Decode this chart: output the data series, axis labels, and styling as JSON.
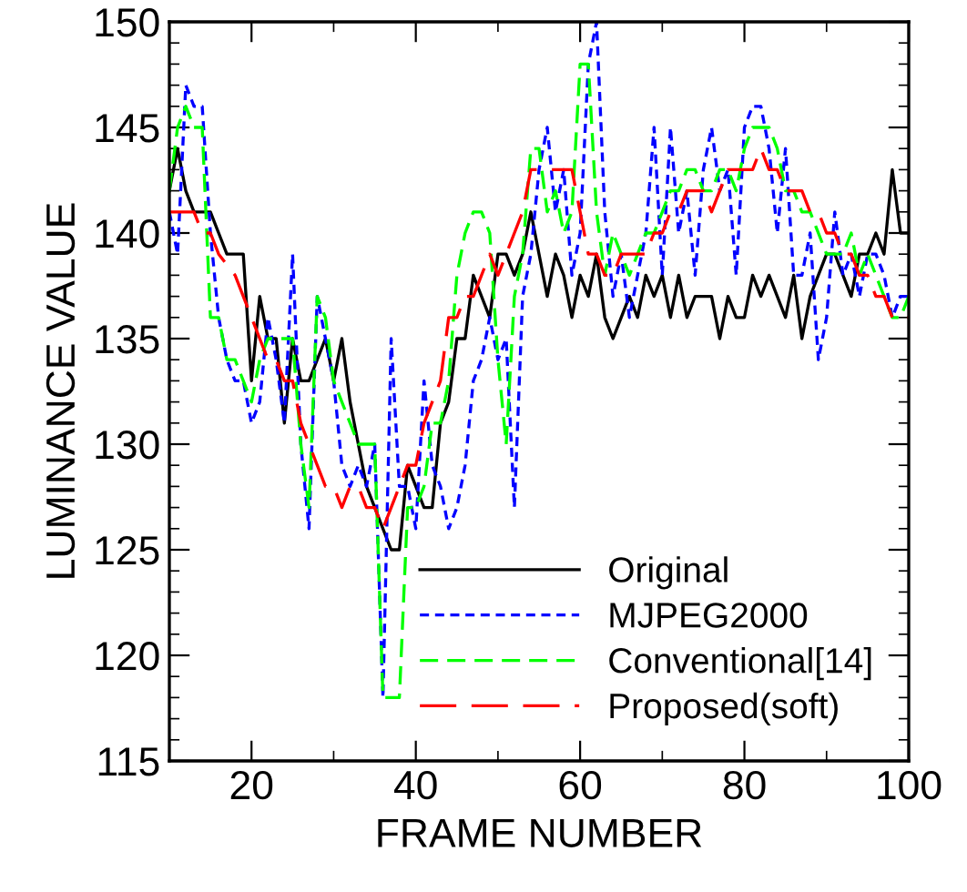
{
  "chart_data": {
    "type": "line",
    "xlabel": "FRAME NUMBER",
    "ylabel": "LUMINANCE VALUE",
    "xlim": [
      10,
      100
    ],
    "ylim": [
      115,
      150
    ],
    "xticks": [
      20,
      {
        "value": 30,
        "label": null
      },
      40,
      {
        "value": 50,
        "label": null
      },
      60,
      {
        "value": 70,
        "label": null
      },
      80,
      {
        "value": 90,
        "label": null
      },
      100
    ],
    "yticks": [
      115,
      {
        "value": 116,
        "label": null
      },
      {
        "value": 117,
        "label": null
      },
      {
        "value": 118,
        "label": null
      },
      {
        "value": 119,
        "label": null
      },
      120,
      {
        "value": 121,
        "label": null
      },
      {
        "value": 122,
        "label": null
      },
      {
        "value": 123,
        "label": null
      },
      {
        "value": 124,
        "label": null
      },
      125,
      {
        "value": 126,
        "label": null
      },
      {
        "value": 127,
        "label": null
      },
      {
        "value": 128,
        "label": null
      },
      {
        "value": 129,
        "label": null
      },
      130,
      {
        "value": 131,
        "label": null
      },
      {
        "value": 132,
        "label": null
      },
      {
        "value": 133,
        "label": null
      },
      {
        "value": 134,
        "label": null
      },
      135,
      {
        "value": 136,
        "label": null
      },
      {
        "value": 137,
        "label": null
      },
      {
        "value": 138,
        "label": null
      },
      {
        "value": 139,
        "label": null
      },
      140,
      {
        "value": 141,
        "label": null
      },
      {
        "value": 142,
        "label": null
      },
      {
        "value": 143,
        "label": null
      },
      {
        "value": 144,
        "label": null
      },
      145,
      {
        "value": 146,
        "label": null
      },
      {
        "value": 147,
        "label": null
      },
      {
        "value": 148,
        "label": null
      },
      {
        "value": 149,
        "label": null
      },
      150
    ],
    "grid": false,
    "legend": "bottom right",
    "marker": "none",
    "series": [
      {
        "name": "Original",
        "color": "#000000",
        "line_style": "solid",
        "x": [
          10,
          11,
          12,
          13,
          15,
          16,
          17,
          19,
          20,
          21,
          22,
          23,
          24,
          25,
          26,
          27,
          28,
          29,
          30,
          31,
          32,
          33,
          34,
          35,
          36,
          37,
          38,
          39,
          40,
          41,
          42,
          43,
          44,
          45,
          46,
          47,
          48,
          49,
          50,
          51,
          52,
          53,
          54,
          55,
          56,
          57,
          58,
          59,
          60,
          61,
          62,
          63,
          64,
          65,
          66,
          67,
          68,
          69,
          70,
          71,
          72,
          73,
          74,
          76,
          77,
          78,
          79,
          80,
          81,
          82,
          83,
          84,
          85,
          86,
          87,
          88,
          89,
          90,
          91,
          92,
          93,
          94,
          95,
          96,
          97,
          98,
          99,
          100
        ],
        "values": [
          142,
          144,
          142,
          141,
          141,
          140,
          139,
          139,
          133,
          137,
          135,
          135,
          131,
          135,
          133,
          133,
          134,
          135,
          133,
          135,
          132,
          130,
          128,
          127,
          126,
          125,
          125,
          129,
          128,
          127,
          127,
          131,
          132,
          135,
          135,
          138,
          137,
          136,
          139,
          139,
          138,
          139,
          141,
          139,
          137,
          139,
          138,
          136,
          138,
          137,
          139,
          136,
          135,
          136,
          137,
          136,
          138,
          137,
          138,
          136,
          138,
          136,
          137,
          137,
          135,
          137,
          136,
          136,
          138,
          137,
          138,
          137,
          136,
          138,
          135,
          137,
          138,
          139,
          139,
          138,
          137,
          139,
          139,
          140,
          139,
          143,
          140,
          140
        ]
      },
      {
        "name": "MJPEG2000",
        "color": "#0000ff",
        "line_style": "dotted",
        "x": [
          10,
          11,
          12,
          13,
          14,
          15,
          16,
          17,
          18,
          19,
          20,
          21,
          22,
          23,
          24,
          25,
          26,
          27,
          28,
          29,
          30,
          31,
          32,
          33,
          34,
          35,
          36,
          37,
          38,
          39,
          40,
          41,
          42,
          43,
          44,
          45,
          46,
          47,
          48,
          49,
          50,
          51,
          52,
          53,
          54,
          55,
          56,
          57,
          58,
          59,
          60,
          61,
          62,
          63,
          64,
          65,
          66,
          67,
          68,
          69,
          70,
          71,
          72,
          73,
          74,
          75,
          76,
          77,
          78,
          79,
          80,
          81,
          82,
          83,
          84,
          85,
          86,
          87,
          88,
          89,
          90,
          91,
          92,
          93,
          94,
          95,
          96,
          97,
          98,
          99,
          100
        ],
        "values": [
          141,
          139,
          147,
          146,
          146,
          140,
          136,
          134,
          133,
          133,
          131,
          132,
          136,
          134,
          131,
          139,
          130,
          126,
          137,
          135,
          133,
          129,
          128,
          129,
          128,
          130,
          118,
          135,
          128,
          128,
          126,
          133,
          129,
          128,
          126,
          127,
          129,
          133,
          134,
          136,
          134,
          135,
          127,
          137,
          139,
          143,
          145,
          141,
          143,
          138,
          140,
          148,
          150,
          141,
          137,
          139,
          136,
          138,
          140,
          145,
          138,
          145,
          140,
          142,
          138,
          143,
          145,
          142,
          143,
          138,
          145,
          146,
          146,
          144,
          140,
          144,
          138,
          138,
          140,
          134,
          136,
          141,
          138,
          139,
          137,
          139,
          139,
          138,
          136,
          137,
          137
        ]
      },
      {
        "name": "Conventional[14]",
        "color": "#00ff00",
        "line_style": "dashed",
        "x": [
          10,
          11,
          12,
          13,
          14,
          15,
          16,
          17,
          18,
          19,
          20,
          21,
          22,
          23,
          24,
          25,
          26,
          27,
          28,
          29,
          30,
          31,
          32,
          33,
          34,
          35,
          36,
          37,
          38,
          39,
          40,
          41,
          42,
          43,
          44,
          45,
          46,
          47,
          48,
          49,
          50,
          51,
          52,
          53,
          54,
          55,
          56,
          57,
          58,
          59,
          60,
          61,
          62,
          63,
          64,
          65,
          66,
          67,
          68,
          69,
          70,
          71,
          72,
          73,
          74,
          75,
          76,
          77,
          78,
          79,
          80,
          81,
          82,
          83,
          84,
          85,
          86,
          87,
          88,
          89,
          90,
          91,
          92,
          93,
          94,
          95,
          96,
          97,
          98,
          99,
          100
        ],
        "values": [
          142,
          145,
          146,
          145,
          145,
          136,
          136,
          134,
          134,
          133,
          132,
          134,
          135,
          135,
          135,
          135,
          130,
          127,
          137,
          136,
          133,
          132,
          131,
          130,
          130,
          130,
          118,
          118,
          118,
          127,
          127,
          128,
          131,
          131,
          133,
          138,
          140,
          141,
          141,
          140,
          134,
          130,
          137,
          139,
          144,
          144,
          141,
          142,
          140,
          141,
          148,
          148,
          141,
          138,
          140,
          139,
          138,
          139,
          140,
          140,
          141,
          142,
          142,
          143,
          143,
          142,
          142,
          143,
          143,
          142,
          144,
          145,
          145,
          145,
          144,
          142,
          142,
          141,
          141,
          140,
          139,
          139,
          139,
          140,
          138,
          139,
          138,
          137,
          136,
          136,
          137
        ]
      },
      {
        "name": "Proposed(soft)",
        "color": "#ff0000",
        "line_style": "longdash",
        "x": [
          10,
          13,
          14,
          15,
          16,
          18,
          19,
          20,
          21,
          22,
          23,
          24,
          25,
          26,
          27,
          28,
          29,
          30,
          31,
          32,
          33,
          34,
          35,
          36,
          37,
          38,
          39,
          40,
          41,
          42,
          43,
          44,
          45,
          46,
          47,
          48,
          49,
          50,
          51,
          52,
          53,
          54,
          57,
          59,
          60,
          61,
          62,
          63,
          64,
          65,
          66,
          67,
          68,
          69,
          70,
          71,
          72,
          73,
          74,
          75,
          76,
          77,
          78,
          79,
          80,
          81,
          82,
          83,
          84,
          85,
          86,
          87,
          88,
          89,
          90,
          91,
          92,
          93,
          94,
          95,
          96,
          97,
          98,
          99,
          100
        ],
        "values": [
          141,
          141,
          140,
          140,
          139,
          138,
          137,
          136,
          135,
          134,
          134,
          133,
          133,
          131,
          130,
          129,
          128,
          128,
          127,
          128,
          128,
          127,
          127,
          126,
          127,
          128,
          129,
          129,
          131,
          132,
          133,
          136,
          136,
          137,
          137,
          138,
          139,
          138,
          139,
          140,
          141,
          143,
          143,
          143,
          141,
          139,
          139,
          138,
          138,
          139,
          139,
          139,
          139,
          140,
          140,
          141,
          141,
          142,
          142,
          142,
          141,
          142,
          143,
          143,
          143,
          143,
          144,
          143,
          143,
          142,
          142,
          142,
          141,
          141,
          140,
          140,
          139,
          139,
          138,
          138,
          137,
          137,
          136,
          136,
          136
        ]
      }
    ]
  }
}
